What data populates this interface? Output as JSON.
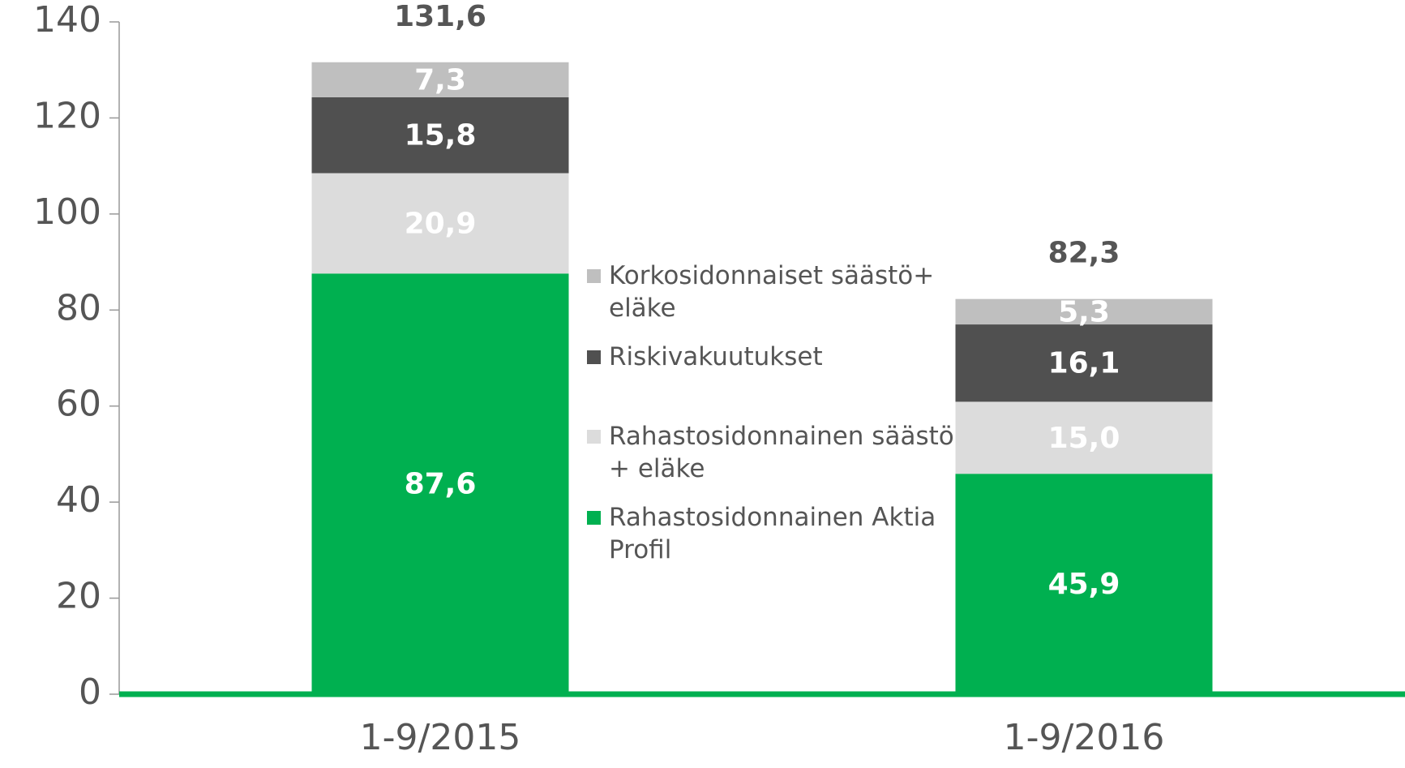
{
  "chart_data": {
    "type": "stacked_bar",
    "categories": [
      "1-9/2015",
      "1-9/2016"
    ],
    "series": [
      {
        "name": "Rahastosidonnainen Aktia Profil",
        "color": "#00b050",
        "values": [
          87.6,
          45.9
        ],
        "value_labels": [
          "87,6",
          "45,9"
        ]
      },
      {
        "name": "Rahastosidonnainen säästö + eläke",
        "color": "#dcdcdc",
        "values": [
          20.9,
          15.0
        ],
        "value_labels": [
          "20,9",
          "15,0"
        ]
      },
      {
        "name": "Riskivakuutukset",
        "color": "#505050",
        "values": [
          15.8,
          16.1
        ],
        "value_labels": [
          "15,8",
          "16,1"
        ]
      },
      {
        "name": "Korkosidonnaiset säästö+ eläke",
        "color": "#bfbfbf",
        "values": [
          7.3,
          5.3
        ],
        "value_labels": [
          "7,3",
          "5,3"
        ]
      }
    ],
    "totals": [
      131.6,
      82.3
    ],
    "total_labels": [
      "131,6",
      "82,3"
    ],
    "ylim": [
      0,
      140
    ],
    "yticks": [
      0,
      20,
      40,
      60,
      80,
      100,
      120,
      140
    ],
    "legend": "center"
  }
}
